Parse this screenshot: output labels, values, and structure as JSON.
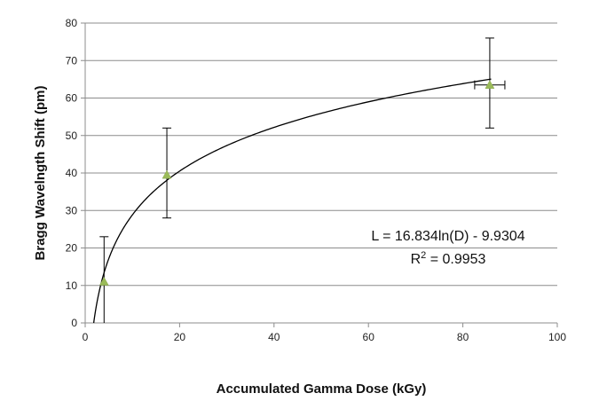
{
  "chart_data": {
    "type": "scatter",
    "title": "",
    "xlabel": "Accumulated Gamma Dose (kGy)",
    "ylabel": "Bragg Wavelngth Shift (pm)",
    "xlim": [
      0,
      100
    ],
    "ylim": [
      0,
      80
    ],
    "x_ticks": [
      0,
      20,
      40,
      60,
      80,
      100
    ],
    "y_ticks": [
      0,
      10,
      20,
      30,
      40,
      50,
      60,
      70,
      80
    ],
    "grid": "horizontal",
    "legend": "none",
    "marker_color": "#9bbb59",
    "series": [
      {
        "points": [
          {
            "x": 4,
            "y": 11,
            "y_err_plus": 12,
            "y_err_minus": 11
          },
          {
            "x": 17.3,
            "y": 39.5,
            "y_err_plus": 12.5,
            "y_err_minus": 11.5
          },
          {
            "x": 85.7,
            "y": 63.5,
            "y_err_plus": 12.5,
            "y_err_minus": 11.5,
            "x_err": 3.2
          }
        ]
      }
    ],
    "trendline": {
      "type": "logarithmic",
      "a": 16.834,
      "b": -9.9304,
      "equation": "L = 16.834ln(D) - 9.9304",
      "r2_label": "R",
      "r2_sup": "2",
      "r2_value": " = 0.9953"
    }
  }
}
